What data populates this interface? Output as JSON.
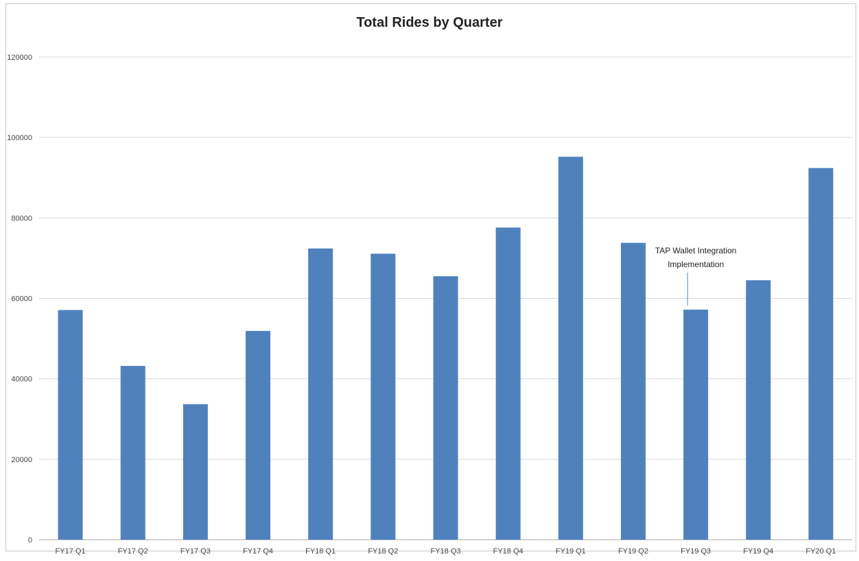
{
  "chart_data": {
    "type": "bar",
    "title": "Total Rides by Quarter",
    "xlabel": "",
    "ylabel": "",
    "categories": [
      "FY17 Q1",
      "FY17 Q2",
      "FY17 Q3",
      "FY17 Q4",
      "FY18 Q1",
      "FY18 Q2",
      "FY18 Q3",
      "FY18 Q4",
      "FY19 Q1",
      "FY19 Q2",
      "FY19 Q3",
      "FY19 Q4",
      "FY20 Q1"
    ],
    "values": [
      57100,
      43200,
      33700,
      51900,
      72400,
      71100,
      65500,
      77600,
      95200,
      73800,
      57200,
      64500,
      92400
    ],
    "ylim": [
      0,
      120000
    ],
    "yticks": [
      "0",
      "20000",
      "40000",
      "60000",
      "80000",
      "100000",
      "120000"
    ],
    "grid": true,
    "legend": "none",
    "bar_color": "#4F81BD",
    "annotations": [
      {
        "lines": [
          "TAP Wallet Integration",
          "Implementation"
        ],
        "category": "FY19 Q3"
      }
    ]
  }
}
